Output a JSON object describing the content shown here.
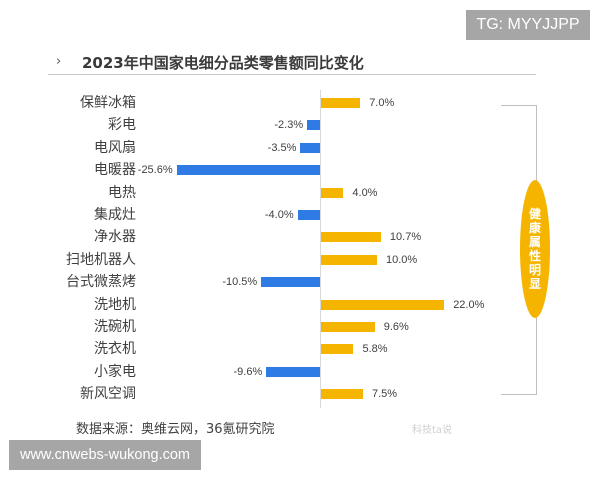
{
  "badge": "TG: MYYJJPP",
  "header": {
    "chevron": "›",
    "title": "2023年中国家电细分品类零售额同比变化"
  },
  "annotation": {
    "text": [
      "健",
      "康",
      "属",
      "性",
      "明",
      "显"
    ]
  },
  "footer": {
    "source": "数据来源：奥维云网，36氪研究院",
    "weibo_mark": "科技ta说"
  },
  "watermark": "www.cnwebs-wukong.com",
  "colors": {
    "positive": "#f4b400",
    "negative": "#2f7be6",
    "axis": "#d9d9d9"
  },
  "chart_data": {
    "type": "bar",
    "orientation": "horizontal",
    "title": "2023年中国家电细分品类零售额同比变化",
    "xlabel": "",
    "ylabel": "",
    "unit": "%",
    "categories": [
      "保鲜冰箱",
      "彩电",
      "电风扇",
      "电暖器",
      "电热",
      "集成灶",
      "净水器",
      "扫地机器人",
      "台式微蒸烤",
      "洗地机",
      "洗碗机",
      "洗衣机",
      "小家电",
      "新风空调"
    ],
    "values": [
      7.0,
      -2.3,
      -3.5,
      -25.6,
      4.0,
      -4.0,
      10.7,
      10.0,
      -10.5,
      22.0,
      9.6,
      5.8,
      -9.6,
      7.5
    ],
    "labels": [
      "7.0%",
      "-2.3%",
      "-3.5%",
      "-25.6%",
      "4.0%",
      "-4.0%",
      "10.7%",
      "10.0%",
      "-10.5%",
      "22.0%",
      "9.6%",
      "5.8%",
      "-9.6%",
      "7.5%"
    ],
    "grid": false,
    "legend": null,
    "annotation": "健康属性明显",
    "source": "数据来源：奥维云网，36氪研究院"
  }
}
